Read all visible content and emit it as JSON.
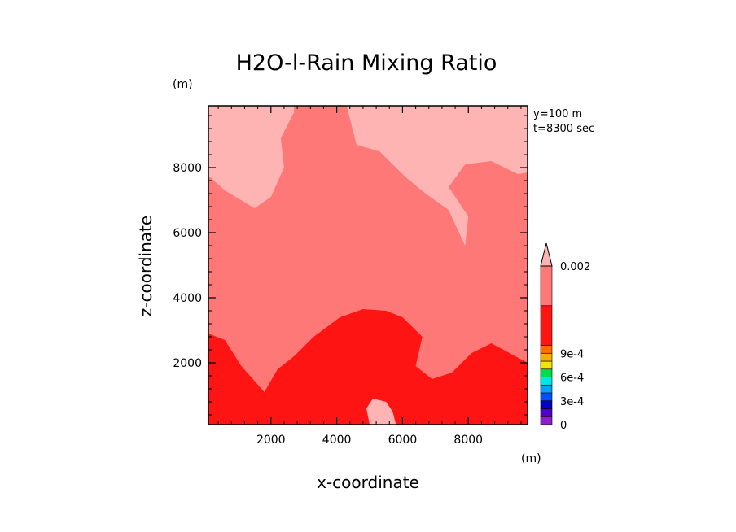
{
  "chart_data": {
    "type": "heatmap",
    "title": "H2O-l-Rain Mixing Ratio",
    "xlabel": "x-coordinate",
    "ylabel": "z-coordinate",
    "x_unit": "(m)",
    "y_unit": "(m)",
    "xlim": [
      100,
      9800
    ],
    "ylim": [
      100,
      9900
    ],
    "x_ticks": [
      2000,
      4000,
      6000,
      8000
    ],
    "y_ticks": [
      2000,
      4000,
      6000,
      8000
    ],
    "x_tick_labels": [
      "2000",
      "4000",
      "6000",
      "8000"
    ],
    "y_tick_labels": [
      "2000",
      "4000",
      "6000",
      "8000"
    ],
    "annotations": [
      "y=100 m",
      "t=8300 sec"
    ],
    "regions": [
      {
        "name": "upper-left light patch",
        "level": "above 0.002",
        "color": "#ffb4b4",
        "outline": [
          [
            100,
            7750
          ],
          [
            600,
            7300
          ],
          [
            1500,
            6750
          ],
          [
            2000,
            7100
          ],
          [
            2400,
            8000
          ],
          [
            2300,
            8900
          ],
          [
            2700,
            9700
          ],
          [
            2700,
            9900
          ],
          [
            100,
            9900
          ]
        ]
      },
      {
        "name": "upper-right light patch",
        "level": "above 0.002",
        "color": "#ffb4b4",
        "outline": [
          [
            4300,
            9900
          ],
          [
            4600,
            8700
          ],
          [
            5300,
            8500
          ],
          [
            6100,
            7700
          ],
          [
            6700,
            7200
          ],
          [
            7400,
            6700
          ],
          [
            7900,
            5600
          ],
          [
            8000,
            6500
          ],
          [
            7400,
            7400
          ],
          [
            7900,
            8100
          ],
          [
            8700,
            8200
          ],
          [
            9500,
            7800
          ],
          [
            9800,
            7850
          ],
          [
            9800,
            9900
          ]
        ]
      },
      {
        "name": "lower-left dark region",
        "level": "0.0011 - 0.0015",
        "color": "#ff1414",
        "outline": [
          [
            100,
            100
          ],
          [
            100,
            2900
          ],
          [
            600,
            2700
          ],
          [
            1100,
            1900
          ],
          [
            1800,
            1100
          ],
          [
            2200,
            1800
          ],
          [
            2700,
            2200
          ],
          [
            3300,
            2800
          ],
          [
            4100,
            3400
          ],
          [
            4800,
            3650
          ],
          [
            5500,
            3600
          ],
          [
            6000,
            3400
          ],
          [
            6600,
            2800
          ],
          [
            6400,
            1900
          ],
          [
            6900,
            1500
          ],
          [
            7500,
            1700
          ],
          [
            8100,
            2300
          ],
          [
            8700,
            2600
          ],
          [
            9800,
            2000
          ],
          [
            9800,
            100
          ]
        ]
      },
      {
        "name": "bottom-center light bubble",
        "level": "above 0.002",
        "color": "#ffb4b4",
        "outline": [
          [
            5000,
            100
          ],
          [
            4900,
            600
          ],
          [
            5100,
            900
          ],
          [
            5500,
            800
          ],
          [
            5700,
            500
          ],
          [
            5800,
            100
          ]
        ]
      }
    ],
    "background_level": {
      "level": "0.0015 - 0.002",
      "color": "#ff7878"
    },
    "colorbar": {
      "min": 0,
      "max": 0.002,
      "labels": [
        "0.002",
        "9e-4",
        "6e-4",
        "3e-4",
        "0"
      ],
      "segments": [
        {
          "from": 0,
          "to": 0.0001,
          "color": "#8c1ecc"
        },
        {
          "from": 0.0001,
          "to": 0.0002,
          "color": "#5000c8"
        },
        {
          "from": 0.0002,
          "to": 0.0003,
          "color": "#0000c8"
        },
        {
          "from": 0.0003,
          "to": 0.0004,
          "color": "#0050ff"
        },
        {
          "from": 0.0004,
          "to": 0.0005,
          "color": "#00a0ff"
        },
        {
          "from": 0.0005,
          "to": 0.0006,
          "color": "#00e6e6"
        },
        {
          "from": 0.0006,
          "to": 0.0007,
          "color": "#00dc50"
        },
        {
          "from": 0.0007,
          "to": 0.0008,
          "color": "#f0e600"
        },
        {
          "from": 0.0008,
          "to": 0.0009,
          "color": "#ffaa00"
        },
        {
          "from": 0.0009,
          "to": 0.001,
          "color": "#ff6e00"
        },
        {
          "from": 0.001,
          "to": 0.0015,
          "color": "#ff1414"
        },
        {
          "from": 0.0015,
          "to": 0.002,
          "color": "#ff7878"
        }
      ],
      "overflow_color": "#ffb4b4"
    }
  }
}
